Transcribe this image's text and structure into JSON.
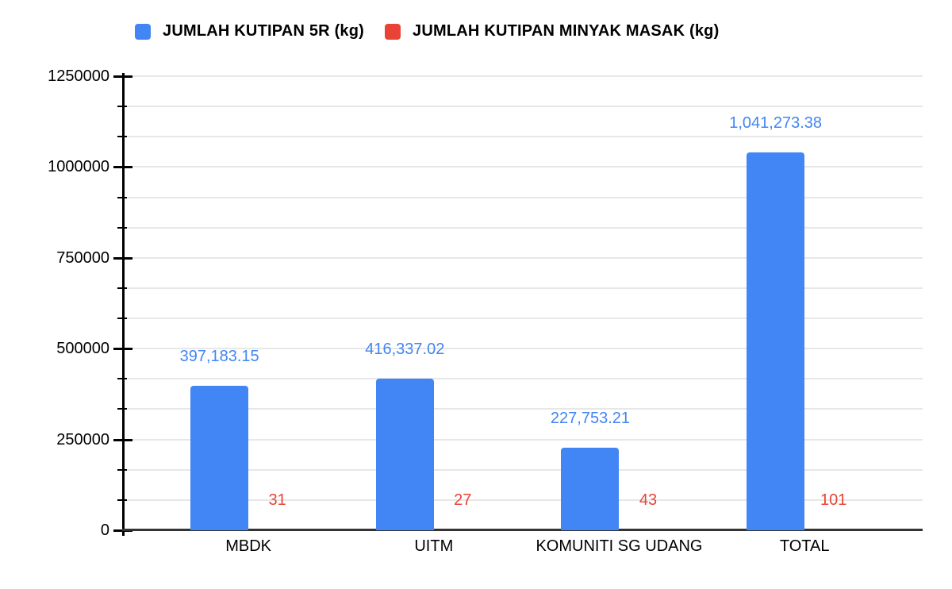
{
  "legend": {
    "items": [
      {
        "label": "JUMLAH KUTIPAN 5R (kg)",
        "color": "#4285F4"
      },
      {
        "label": "JUMLAH KUTIPAN MINYAK MASAK (kg)",
        "color": "#EA4335"
      }
    ]
  },
  "chart_data": {
    "type": "bar",
    "title": "",
    "categories": [
      "MBDK",
      "UITM",
      "KOMUNITI SG UDANG",
      "TOTAL"
    ],
    "series": [
      {
        "name": "JUMLAH KUTIPAN 5R (kg)",
        "color": "#4285F4",
        "values": [
          397183.15,
          416337.02,
          227753.21,
          1041273.38
        ],
        "value_labels": [
          "397,183.15",
          "416,337.02",
          "227,753.21",
          "1,041,273.38"
        ]
      },
      {
        "name": "JUMLAH KUTIPAN MINYAK MASAK (kg)",
        "color": "#EA4335",
        "values": [
          31,
          27,
          43,
          101
        ],
        "value_labels": [
          "31",
          "27",
          "43",
          "101"
        ]
      }
    ],
    "xlabel": "",
    "ylabel": "",
    "y_axis": {
      "min": 0,
      "max": 1250000,
      "major_tick_values": [
        0,
        250000,
        500000,
        750000,
        1000000,
        1250000
      ],
      "major_tick_labels": [
        "0",
        "250000",
        "500000",
        "750000",
        "1000000",
        "1250000"
      ],
      "minor_divisions_per_major": 3
    },
    "grid": true,
    "legend_position": "top",
    "colors": {
      "gridline": "#e7e7e7",
      "axis": "#000000",
      "baseline": "#333333",
      "text": "#000000"
    }
  }
}
